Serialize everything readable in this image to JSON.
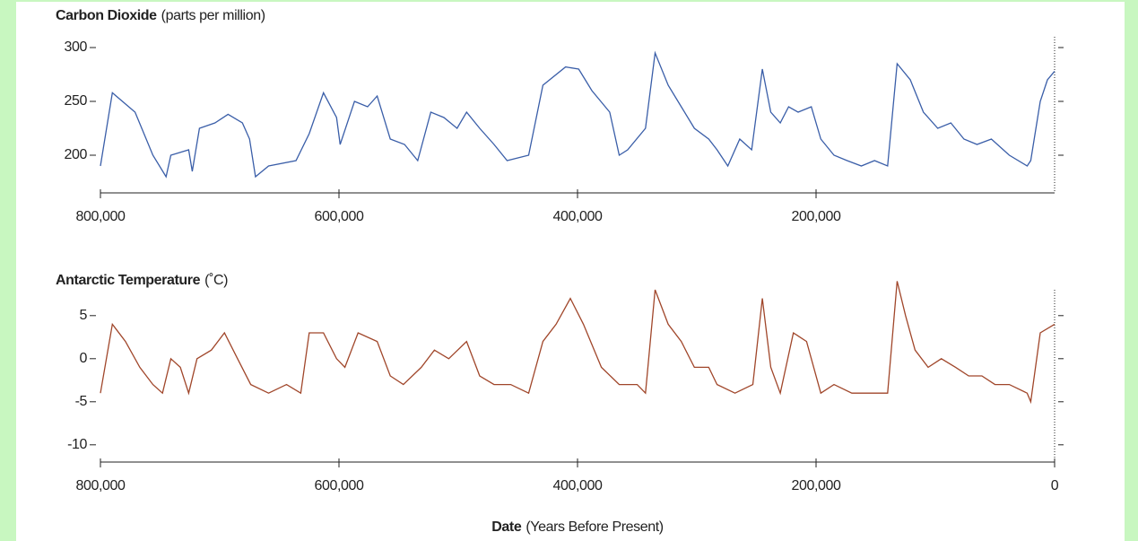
{
  "chart_data": [
    {
      "type": "line",
      "title": "Carbon Dioxide",
      "title_unit": "(parts per million)",
      "color": "#3a5ea8",
      "x": [
        800000,
        790000,
        771000,
        756000,
        745000,
        741000,
        726000,
        723000,
        717000,
        704000,
        693000,
        681000,
        675000,
        670000,
        659000,
        636000,
        625000,
        613000,
        602000,
        599000,
        587000,
        576000,
        568000,
        557000,
        545000,
        534000,
        523000,
        512000,
        501000,
        493000,
        482000,
        470000,
        459000,
        441000,
        429000,
        410000,
        399000,
        388000,
        373000,
        365000,
        358000,
        343000,
        335000,
        324000,
        313000,
        302000,
        290000,
        283000,
        274000,
        264000,
        254000,
        245000,
        238000,
        230000,
        223000,
        215000,
        204000,
        196000,
        185000,
        174000,
        162000,
        151000,
        140000,
        132000,
        121000,
        110000,
        98000,
        87000,
        76000,
        65000,
        53000,
        38000,
        23000,
        20000,
        12000,
        6000,
        0
      ],
      "values": [
        190,
        258,
        240,
        200,
        180,
        200,
        205,
        185,
        225,
        230,
        238,
        230,
        215,
        180,
        190,
        195,
        220,
        258,
        235,
        210,
        250,
        245,
        255,
        215,
        210,
        195,
        240,
        235,
        225,
        240,
        225,
        210,
        195,
        200,
        265,
        282,
        280,
        260,
        240,
        200,
        205,
        225,
        295,
        265,
        245,
        225,
        215,
        205,
        190,
        215,
        205,
        280,
        240,
        230,
        245,
        240,
        245,
        215,
        200,
        195,
        190,
        195,
        190,
        285,
        270,
        240,
        225,
        230,
        215,
        210,
        215,
        200,
        190,
        195,
        250,
        270,
        278
      ],
      "xlim": [
        800000,
        0
      ],
      "xticks": [
        {
          "value": 800000,
          "label": "800,000"
        },
        {
          "value": 600000,
          "label": "600,000"
        },
        {
          "value": 400000,
          "label": "400,000"
        },
        {
          "value": 200000,
          "label": "200,000"
        }
      ],
      "ylim": [
        165,
        310
      ],
      "yticks": [
        200,
        250,
        300
      ]
    },
    {
      "type": "line",
      "title": "Antarctic Temperature",
      "title_unit": "(˚C)",
      "color": "#a0462a",
      "x": [
        800000,
        790000,
        779000,
        767000,
        756000,
        748000,
        741000,
        733000,
        726000,
        719000,
        707000,
        696000,
        685000,
        674000,
        659000,
        644000,
        632000,
        625000,
        613000,
        602000,
        595000,
        584000,
        568000,
        557000,
        546000,
        531000,
        520000,
        508000,
        493000,
        482000,
        470000,
        456000,
        441000,
        429000,
        418000,
        406000,
        395000,
        380000,
        365000,
        350000,
        343000,
        335000,
        324000,
        313000,
        302000,
        290000,
        283000,
        268000,
        253000,
        245000,
        238000,
        230000,
        219000,
        208000,
        196000,
        185000,
        170000,
        155000,
        140000,
        132000,
        125000,
        117000,
        106000,
        95000,
        83000,
        72000,
        61000,
        50000,
        38000,
        23000,
        20000,
        12000,
        0
      ],
      "values": [
        -4,
        4,
        2,
        -1,
        -3,
        -4,
        0,
        -1,
        -4,
        0,
        1,
        3,
        0,
        -3,
        -4,
        -3,
        -4,
        3,
        3,
        0,
        -1,
        3,
        2,
        -2,
        -3,
        -1,
        1,
        0,
        2,
        -2,
        -3,
        -3,
        -4,
        2,
        4,
        7,
        4,
        -1,
        -3,
        -3,
        -4,
        8,
        4,
        2,
        -1,
        -1,
        -3,
        -4,
        -3,
        7,
        -1,
        -4,
        3,
        2,
        -4,
        -3,
        -4,
        -4,
        -4,
        9,
        5,
        1,
        -1,
        0,
        -1,
        -2,
        -2,
        -3,
        -3,
        -4,
        -5,
        3,
        4
      ],
      "xlim": [
        800000,
        0
      ],
      "xticks": [
        {
          "value": 800000,
          "label": "800,000"
        },
        {
          "value": 600000,
          "label": "600,000"
        },
        {
          "value": 400000,
          "label": "400,000"
        },
        {
          "value": 200000,
          "label": "200,000"
        },
        0
      ],
      "ylim": [
        -12,
        8
      ],
      "yticks": [
        -10,
        -5,
        0,
        5
      ],
      "xlabel": "Date",
      "xlabel_unit": "(Years Before Present)"
    }
  ]
}
